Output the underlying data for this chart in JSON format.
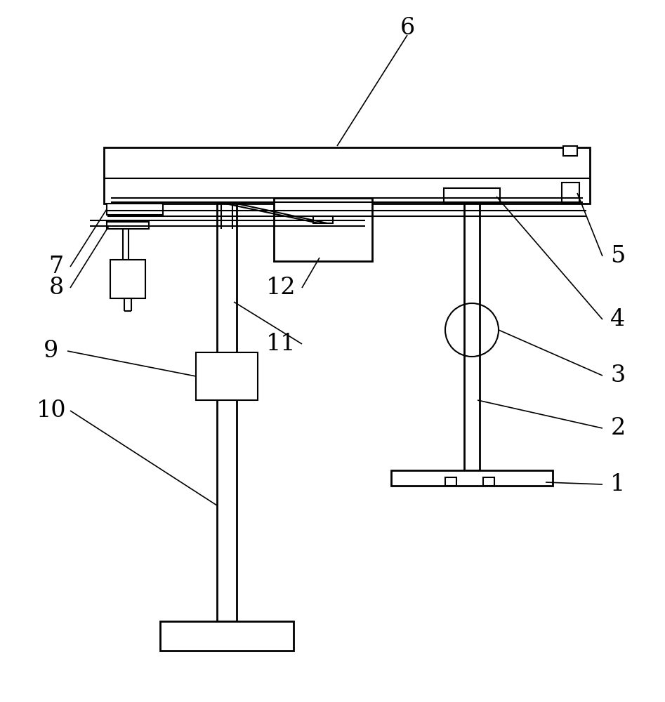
{
  "bg_color": "#ffffff",
  "lc": "#000000",
  "lw": 1.5,
  "tlw": 2.0,
  "label_fontsize": 24,
  "label_fontsize_small": 20
}
